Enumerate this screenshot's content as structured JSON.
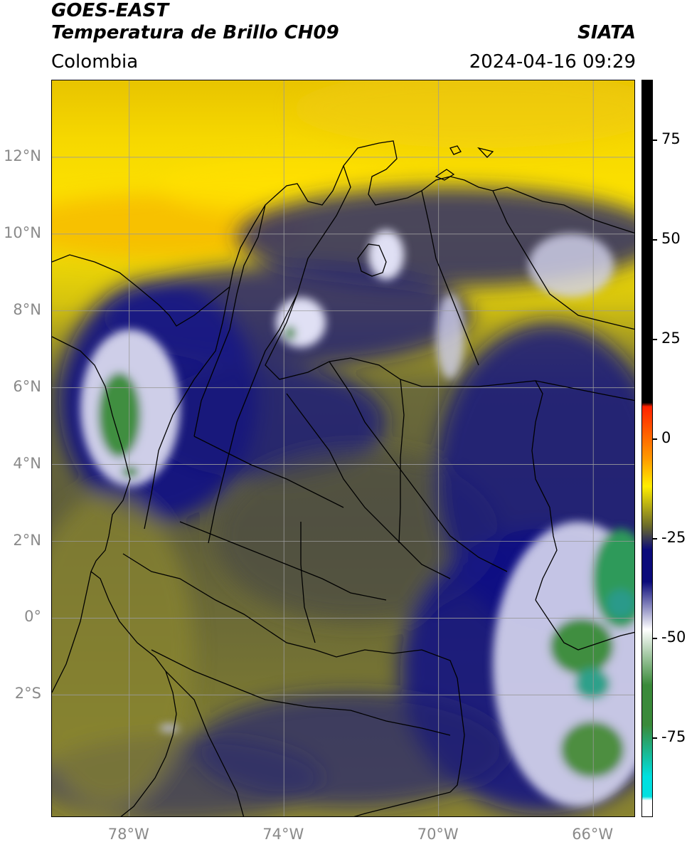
{
  "header": {
    "satellite": "GOES-EAST",
    "product": "Temperatura de Brillo CH09",
    "agency": "SIATA",
    "region": "Colombia",
    "timestamp": "2024-04-16 09:29"
  },
  "map": {
    "projection": "PlateCarree",
    "lon_range": [
      -80,
      -64.9
    ],
    "lat_range": [
      -5.2,
      14
    ],
    "gridlines": true,
    "lat_ticks": [
      {
        "value": 12,
        "label": "12°N"
      },
      {
        "value": 10,
        "label": "10°N"
      },
      {
        "value": 8,
        "label": "8°N"
      },
      {
        "value": 6,
        "label": "6°N"
      },
      {
        "value": 4,
        "label": "4°N"
      },
      {
        "value": 2,
        "label": "2°N"
      },
      {
        "value": 0,
        "label": "0°"
      },
      {
        "value": -2,
        "label": "2°S"
      }
    ],
    "lon_ticks": [
      {
        "value": -78,
        "label": "78°W"
      },
      {
        "value": -74,
        "label": "74°W"
      },
      {
        "value": -70,
        "label": "70°W"
      },
      {
        "value": -66,
        "label": "66°W"
      }
    ]
  },
  "colorbar": {
    "range": [
      -95,
      90
    ],
    "ticks": [
      {
        "value": 75,
        "label": "75"
      },
      {
        "value": 50,
        "label": "50"
      },
      {
        "value": 25,
        "label": "25"
      },
      {
        "value": 0,
        "label": "0"
      },
      {
        "value": -25,
        "label": "-25"
      },
      {
        "value": -50,
        "label": "-50"
      },
      {
        "value": -75,
        "label": "-75"
      }
    ],
    "colors": {
      "black": "#000000",
      "red": "#ff2200",
      "orange": "#ff9900",
      "yellow": "#ffee00",
      "olive": "#6b6b2a",
      "navy": "#0a0a7a",
      "white": "#ffffff",
      "green": "#3a8a3a",
      "cyan": "#00e0e0"
    }
  }
}
